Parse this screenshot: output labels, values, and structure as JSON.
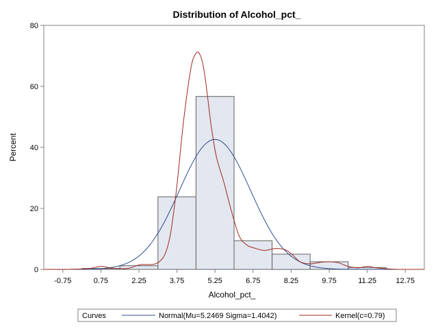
{
  "chart_data": {
    "type": "bar",
    "title": "Distribution of Alcohol_pct_",
    "xlabel": "Alcohol_pct_",
    "ylabel": "Percent",
    "xlim": [
      -1.5,
      13.5
    ],
    "ylim": [
      0,
      80
    ],
    "x_ticks": [
      "-0.75",
      "0.75",
      "2.25",
      "3.75",
      "5.25",
      "6.75",
      "8.25",
      "9.75",
      "11.25",
      "12.75"
    ],
    "y_ticks": [
      0,
      20,
      40,
      60,
      80
    ],
    "bins": [
      {
        "center": 0.75,
        "value": 0.3
      },
      {
        "center": 2.25,
        "value": 1.2
      },
      {
        "center": 3.75,
        "value": 23.8
      },
      {
        "center": 5.25,
        "value": 56.7
      },
      {
        "center": 6.75,
        "value": 9.4
      },
      {
        "center": 8.25,
        "value": 5.0
      },
      {
        "center": 9.75,
        "value": 2.5
      },
      {
        "center": 11.25,
        "value": 0.6
      }
    ],
    "bin_width": 1.5,
    "bar_fill": "#e3e7f0",
    "bar_stroke": "#606060",
    "series": [
      {
        "name": "Normal(Mu=5.2469 Sigma=1.4042)",
        "color": "#2e4a8c",
        "mu": 5.2469,
        "sigma": 1.4042
      },
      {
        "name": "Kernel(c=0.79)",
        "color": "#a0261e",
        "x": [
          -1.5,
          -0.5,
          0.3,
          0.75,
          1.2,
          1.8,
          2.3,
          3.0,
          3.4,
          3.7,
          4.0,
          4.3,
          4.5,
          4.65,
          4.8,
          4.95,
          5.1,
          5.3,
          5.6,
          5.9,
          6.2,
          6.5,
          6.8,
          7.2,
          7.6,
          8.0,
          8.3,
          8.6,
          9.0,
          9.4,
          9.75,
          10.1,
          10.5,
          10.9,
          11.25,
          11.6,
          12.0,
          12.5,
          13.5
        ],
        "y": [
          0,
          0,
          0.3,
          1.0,
          0.4,
          0.3,
          1.5,
          2.2,
          8.0,
          24.0,
          48.0,
          66.0,
          70.8,
          70.5,
          66.0,
          57.0,
          47.0,
          37.0,
          28.5,
          19.0,
          11.0,
          8.0,
          7.0,
          6.2,
          6.8,
          6.5,
          4.8,
          2.5,
          1.8,
          2.3,
          2.5,
          2.2,
          1.0,
          0.5,
          1.0,
          0.5,
          0.2,
          0,
          0
        ]
      }
    ],
    "legend": {
      "title": "Curves",
      "placement": "bottom",
      "entries": [
        "Normal(Mu=5.2469 Sigma=1.4042)",
        "Kernel(c=0.79)"
      ]
    },
    "grid": false
  }
}
